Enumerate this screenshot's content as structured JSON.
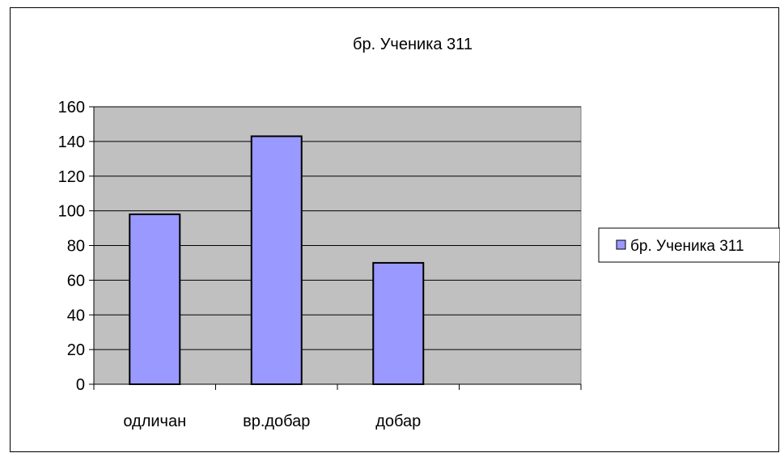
{
  "chart_data": {
    "type": "bar",
    "title": "бр. Ученика 311",
    "categories": [
      "одличан",
      "вр.добар",
      "добар",
      ""
    ],
    "series": [
      {
        "name": "бр. Ученика 311",
        "values": [
          98,
          143,
          70,
          null
        ]
      }
    ],
    "xlabel": "",
    "ylabel": "",
    "ylim": [
      0,
      160
    ],
    "y_ticks": [
      0,
      20,
      40,
      60,
      80,
      100,
      120,
      140,
      160
    ],
    "grid": true,
    "legend": "right",
    "colors": {
      "bar_fill": "#9999ff",
      "plot_background": "#c0c0c0",
      "axis": "#000000",
      "gridline": "#000000"
    }
  }
}
